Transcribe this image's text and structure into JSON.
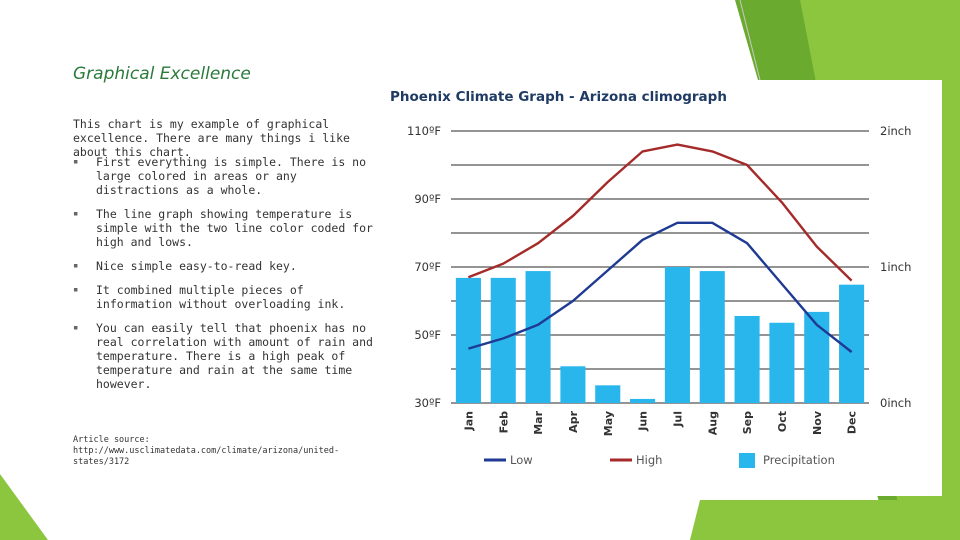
{
  "slide": {
    "title": "Graphical Excellence",
    "intro": "This chart is my example of graphical excellence. There are many things i like about this chart.",
    "bullet_marker": "▪",
    "bullets": [
      "First everything is simple. There is no large colored in areas or any distractions as a whole.",
      "The line graph showing temperature is simple with the two line color coded for high and lows.",
      "Nice simple easy-to-read key.",
      "It combined multiple pieces of information without overloading ink.",
      "You can easily tell that phoenix has no real correlation with amount of rain and temperature. There is a high peak of temperature and rain at the same time however."
    ],
    "source": "Article source: http://www.usclimatedata.com/climate/arizona/united-states/3172"
  },
  "colors": {
    "low": "#1f3a93",
    "high": "#a52a2a",
    "precip": "#29b6ec",
    "grid": "#555555",
    "deco_green": "#6aaa2e",
    "deco_light": "#8cc63f"
  },
  "chart_data": {
    "type": "bar",
    "title": "Phoenix Climate Graph - Arizona climograph",
    "categories": [
      "Jan",
      "Feb",
      "Mar",
      "Apr",
      "May",
      "Jun",
      "Jul",
      "Aug",
      "Sep",
      "Oct",
      "Nov",
      "Dec"
    ],
    "left_axis": {
      "ylim": [
        30,
        110
      ],
      "ticks": [
        "30ºF",
        "50ºF",
        "70ºF",
        "90ºF",
        "110ºF"
      ],
      "tick_values": [
        30,
        50,
        70,
        90,
        110
      ]
    },
    "right_axis": {
      "ylim": [
        0,
        2
      ],
      "ticks": [
        "0inch",
        "1inch",
        "2inch"
      ],
      "tick_values": [
        0,
        1,
        2
      ]
    },
    "series": [
      {
        "name": "Low",
        "kind": "line",
        "axis": "left",
        "values": [
          46,
          49,
          53,
          60,
          69,
          78,
          83,
          83,
          77,
          65,
          53,
          45
        ]
      },
      {
        "name": "High",
        "kind": "line",
        "axis": "left",
        "values": [
          67,
          71,
          77,
          85,
          95,
          104,
          106,
          104,
          100,
          89,
          76,
          66
        ]
      },
      {
        "name": "Precipitation",
        "kind": "bar",
        "axis": "right",
        "values": [
          0.92,
          0.92,
          0.97,
          0.27,
          0.13,
          0.03,
          1.0,
          0.97,
          0.64,
          0.59,
          0.67,
          0.87
        ]
      }
    ],
    "grid": true,
    "legend": "bottom"
  }
}
